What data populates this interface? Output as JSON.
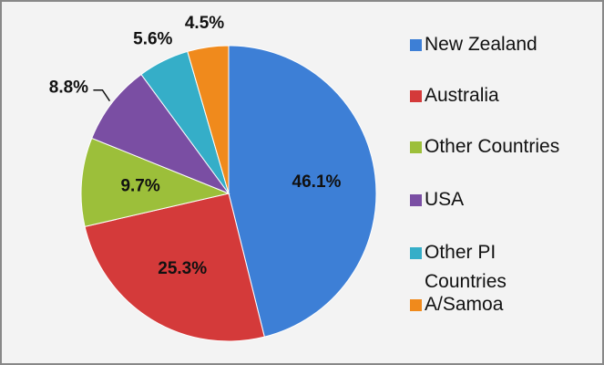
{
  "chart_data": {
    "type": "pie",
    "categories": [
      "New Zealand",
      "Australia",
      "Other Countries",
      "USA",
      "Other PI Countries",
      "A/Samoa"
    ],
    "values": [
      46.1,
      25.3,
      9.7,
      8.8,
      5.6,
      4.5
    ],
    "value_labels": [
      "46.1%",
      "25.3%",
      "9.7%",
      "8.8%",
      "5.6%",
      "4.5%"
    ],
    "colors": [
      "#3d7fd6",
      "#d43a3a",
      "#9cbf3a",
      "#7a4ea3",
      "#35aec8",
      "#f08a1c"
    ],
    "legend": "right"
  }
}
